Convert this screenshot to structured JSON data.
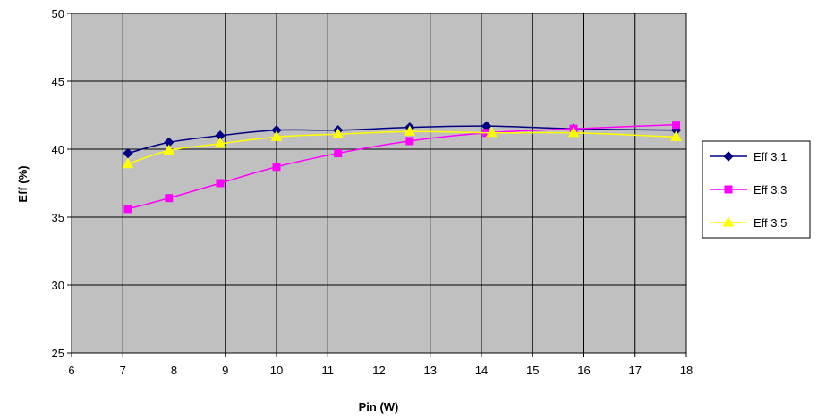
{
  "chart_data": {
    "type": "line",
    "title": "",
    "xlabel": "Pin (W)",
    "ylabel": "Eff (%)",
    "xlim": [
      6,
      18
    ],
    "ylim": [
      25,
      50
    ],
    "xticks": [
      6,
      7,
      8,
      9,
      10,
      11,
      12,
      13,
      14,
      15,
      16,
      17,
      18
    ],
    "yticks": [
      25,
      30,
      35,
      40,
      45,
      50
    ],
    "grid": true,
    "plot_background": "#c0c0c0",
    "legend_position": "right",
    "series": [
      {
        "name": "Eff 3.1",
        "color": "#000080",
        "marker": "diamond",
        "x": [
          7.1,
          7.9,
          8.9,
          10.0,
          11.2,
          12.6,
          14.1,
          15.8,
          17.8
        ],
        "y": [
          39.7,
          40.5,
          41.0,
          41.4,
          41.4,
          41.6,
          41.7,
          41.5,
          41.4
        ]
      },
      {
        "name": "Eff 3.3",
        "color": "#ff00ff",
        "marker": "square",
        "x": [
          7.1,
          7.9,
          8.9,
          10.0,
          11.2,
          12.6,
          14.1,
          15.8,
          17.8
        ],
        "y": [
          35.6,
          36.4,
          37.5,
          38.7,
          39.7,
          40.6,
          41.2,
          41.5,
          41.8
        ]
      },
      {
        "name": "Eff 3.5",
        "color": "#ffff00",
        "marker": "triangle",
        "x": [
          7.1,
          7.9,
          8.9,
          10.0,
          11.2,
          12.6,
          14.2,
          15.8,
          17.8
        ],
        "y": [
          38.9,
          39.9,
          40.4,
          40.9,
          41.1,
          41.3,
          41.2,
          41.2,
          40.9
        ]
      }
    ]
  }
}
